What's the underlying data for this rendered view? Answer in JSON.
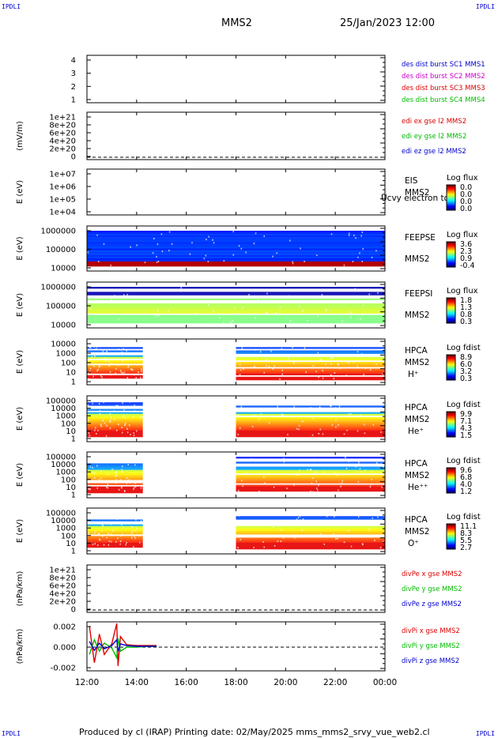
{
  "corners": {
    "tl": "IPDLI",
    "tr": "IPDLI",
    "bl": "IPDLI",
    "br": "IPDLI"
  },
  "header": {
    "spacecraft": "MMS2",
    "datetime": "25/Jan/2023 12:00"
  },
  "footer": {
    "text": "Produced by cl (IRAP)   Printing date: 02/May/2025   mms_mms2_srvy_vue_web2.cl"
  },
  "colors": {
    "red": "#dd0000",
    "magenta": "#cc00cc",
    "green": "#00bb00",
    "blue": "#0000cc"
  },
  "chart_data": {
    "type": "multi-panel",
    "x_axis": {
      "ticks": [
        "12:00",
        "14:00",
        "16:00",
        "18:00",
        "20:00",
        "22:00",
        "00:00"
      ],
      "range": [
        "12:00",
        "00:00"
      ]
    },
    "panels": [
      {
        "id": "p1",
        "type": "line",
        "ylabel": "",
        "yticks": [
          "4",
          "3",
          "2",
          "1"
        ],
        "ylim": [
          0.5,
          4.5
        ],
        "log": false,
        "legend": [
          {
            "text": "des dist burst SC1 MMS1",
            "color": "#0000cc"
          },
          {
            "text": "des dist burst SC2 MMS2",
            "color": "#cc00cc"
          },
          {
            "text": "des dist burst SC3 MMS3",
            "color": "#dd0000"
          },
          {
            "text": "des dist burst SC4 MMS4",
            "color": "#00bb00"
          }
        ],
        "series": []
      },
      {
        "id": "p2",
        "type": "line",
        "ylabel": "(mV/m)",
        "yticks": [
          "1e+21",
          "8e+20",
          "6e+20",
          "4e+20",
          "2e+20",
          "0"
        ],
        "ylim": [
          0,
          1e+21
        ],
        "log": false,
        "zero_line": true,
        "legend": [
          {
            "text": "edi ex gse l2 MMS2",
            "color": "#dd0000"
          },
          {
            "text": "edi ey gse l2 MMS2",
            "color": "#00bb00"
          },
          {
            "text": "edi ez gse l2 MMS2",
            "color": "#0000cc"
          }
        ],
        "series": []
      },
      {
        "id": "p3",
        "type": "spectrogram",
        "ylabel": "E (eV)",
        "yticks": [
          "1e+07",
          "1e+06",
          "1e+05",
          "1e+04"
        ],
        "ylim": [
          10000.0,
          10000000.0
        ],
        "log": true,
        "instrument": [
          "EIS",
          "MMS2"
        ],
        "overlay": "Ucvy electron tot",
        "colorbar": {
          "title": "Log flux",
          "ticks": [
            "0.0",
            "0.0",
            "0.0",
            "0.0"
          ]
        },
        "intervals": []
      },
      {
        "id": "p4",
        "type": "spectrogram",
        "ylabel": "E (eV)",
        "yticks": [
          "1000000",
          "100000",
          "10000"
        ],
        "ylim": [
          10000.0,
          1000000.0
        ],
        "log": true,
        "instrument": [
          "FEEPSE",
          "MMS2"
        ],
        "colorbar": {
          "title": "Log flux",
          "ticks": [
            "3.6",
            "2.3",
            "0.9",
            "-0.4"
          ]
        },
        "intervals": [
          {
            "start": 0,
            "end": 12
          }
        ]
      },
      {
        "id": "p5",
        "type": "spectrogram",
        "ylabel": "E (eV)",
        "yticks": [
          "1000000",
          "100000",
          "10000"
        ],
        "ylim": [
          10000.0,
          1000000.0
        ],
        "log": true,
        "instrument": [
          "FEEPSI",
          "MMS2"
        ],
        "colorbar": {
          "title": "Log flux",
          "ticks": [
            "1.8",
            "1.3",
            "0.8",
            "0.3"
          ]
        },
        "intervals": [
          {
            "start": 0,
            "end": 12
          }
        ]
      },
      {
        "id": "p6",
        "type": "spectrogram",
        "ylabel": "E (eV)",
        "yticks": [
          "10000",
          "1000",
          "100",
          "10",
          "1"
        ],
        "ylim": [
          1,
          30000
        ],
        "log": true,
        "instrument": [
          "HPCA",
          "MMS2",
          "H⁺"
        ],
        "colorbar": {
          "title": "Log fdist",
          "ticks": [
            "8.9",
            "6.0",
            "3.2",
            "0.3"
          ]
        },
        "intervals": [
          {
            "start": 0,
            "end": 2.25
          },
          {
            "start": 6,
            "end": 12
          }
        ]
      },
      {
        "id": "p7",
        "type": "spectrogram",
        "ylabel": "E (eV)",
        "yticks": [
          "100000",
          "10000",
          "1000",
          "100",
          "10",
          "1"
        ],
        "ylim": [
          1,
          100000
        ],
        "log": true,
        "instrument": [
          "HPCA",
          "MMS2",
          "He⁺"
        ],
        "colorbar": {
          "title": "Log fdist",
          "ticks": [
            "9.9",
            "7.1",
            "4.3",
            "1.5"
          ]
        },
        "intervals": [
          {
            "start": 0,
            "end": 2.25
          },
          {
            "start": 6,
            "end": 12
          }
        ]
      },
      {
        "id": "p8",
        "type": "spectrogram",
        "ylabel": "E (eV)",
        "yticks": [
          "100000",
          "10000",
          "1000",
          "100",
          "10",
          "1"
        ],
        "ylim": [
          1,
          100000
        ],
        "log": true,
        "instrument": [
          "HPCA",
          "MMS2",
          "He⁺⁺"
        ],
        "colorbar": {
          "title": "Log fdist",
          "ticks": [
            "9.6",
            "6.8",
            "4.0",
            "1.2"
          ]
        },
        "intervals": [
          {
            "start": 0,
            "end": 2.25
          },
          {
            "start": 6,
            "end": 12
          }
        ]
      },
      {
        "id": "p9",
        "type": "spectrogram",
        "ylabel": "E (eV)",
        "yticks": [
          "100000",
          "10000",
          "1000",
          "100",
          "10",
          "1"
        ],
        "ylim": [
          1,
          100000
        ],
        "log": true,
        "instrument": [
          "HPCA",
          "MMS2",
          "O⁺"
        ],
        "colorbar": {
          "title": "Log fdist",
          "ticks": [
            "11.1",
            "8.3",
            "5.5",
            "2.7"
          ]
        },
        "intervals": [
          {
            "start": 0,
            "end": 2.25
          },
          {
            "start": 6,
            "end": 12
          }
        ]
      },
      {
        "id": "p10",
        "type": "line",
        "ylabel": "(nPa/km)",
        "yticks": [
          "1e+21",
          "8e+20",
          "6e+20",
          "4e+20",
          "2e+20",
          "0"
        ],
        "ylim": [
          0,
          1e+21
        ],
        "log": false,
        "zero_line": true,
        "legend": [
          {
            "text": "divPe x gse MMS2",
            "color": "#dd0000"
          },
          {
            "text": "divPe y gse MMS2",
            "color": "#00bb00"
          },
          {
            "text": "divPe z gse MMS2",
            "color": "#0000cc"
          }
        ],
        "series": []
      },
      {
        "id": "p11",
        "type": "line",
        "ylabel": "(nPa/km)",
        "yticks": [
          "0.002",
          "0.000",
          "-0.002"
        ],
        "ylim": [
          -0.003,
          0.003
        ],
        "log": false,
        "zero_line": true,
        "legend": [
          {
            "text": "divPi x gse MMS2",
            "color": "#dd0000"
          },
          {
            "text": "divPi y gse MMS2",
            "color": "#00bb00"
          },
          {
            "text": "divPi z gse MMS2",
            "color": "#0000cc"
          }
        ],
        "series": [
          {
            "color": "#dd0000",
            "x": [
              0.1,
              0.3,
              0.5,
              0.7,
              1.0,
              1.2,
              1.25,
              1.35,
              1.6,
              2.0,
              2.4,
              2.8
            ],
            "y": [
              0.0025,
              -0.002,
              0.0015,
              -0.001,
              0.0003,
              0.0028,
              -0.0024,
              0.0012,
              0.0002,
              0.0001,
              0.0001,
              0.0001
            ]
          },
          {
            "color": "#00bb00",
            "x": [
              0.1,
              0.3,
              0.5,
              0.7,
              1.0,
              1.2,
              1.25,
              1.35,
              1.6,
              2.0,
              2.4,
              2.8
            ],
            "y": [
              -0.001,
              0.0008,
              -0.0006,
              0.0004,
              -0.0002,
              -0.0014,
              0.001,
              -0.0006,
              -0.0001,
              -0.0001,
              0.0,
              0.0
            ]
          },
          {
            "color": "#0000cc",
            "x": [
              0.1,
              0.3,
              0.5,
              0.7,
              1.0,
              1.2,
              1.25,
              1.35,
              1.6,
              2.0,
              2.4,
              2.8
            ],
            "y": [
              0.0006,
              -0.0005,
              0.0004,
              -0.0003,
              0.0001,
              0.0008,
              -0.0006,
              0.0003,
              0.0001,
              0.0,
              0.0,
              0.0
            ]
          }
        ]
      }
    ]
  }
}
